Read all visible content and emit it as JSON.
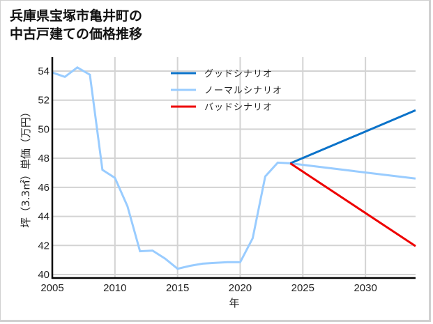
{
  "title": {
    "line1": "兵庫県宝塚市亀井町の",
    "line2": "中古戸建ての価格推移"
  },
  "colors": {
    "good": "#0a72c9",
    "normal": "#99ccff",
    "bad": "#ee0000",
    "grid": "#d3d3d3",
    "axis": "#000000"
  },
  "chart_data": {
    "type": "line",
    "title": "兵庫県宝塚市亀井町の中古戸建ての価格推移",
    "xlabel": "年",
    "ylabel": "坪（3.3㎡）単価（万円）",
    "xlim": [
      2005,
      2034
    ],
    "ylim": [
      39.8,
      54.9
    ],
    "xticks": [
      2005,
      2010,
      2015,
      2020,
      2025,
      2030
    ],
    "yticks": [
      40,
      42,
      44,
      46,
      48,
      50,
      52,
      54
    ],
    "grid": true,
    "legend_position": "upper center",
    "legend": [
      "グッドシナリオ",
      "ノーマルシナリオ",
      "バッドシナリオ"
    ],
    "series": [
      {
        "name": "ノーマルシナリオ",
        "key": "normal",
        "x": [
          2005,
          2006,
          2007,
          2008,
          2009,
          2010,
          2011,
          2012,
          2013,
          2014,
          2015,
          2016,
          2017,
          2018,
          2019,
          2020,
          2021,
          2022,
          2023,
          2024,
          2034
        ],
        "values": [
          53.9,
          53.6,
          54.25,
          53.75,
          47.2,
          46.65,
          44.7,
          41.6,
          41.65,
          41.1,
          40.4,
          40.6,
          40.75,
          40.8,
          40.85,
          40.85,
          42.5,
          46.75,
          47.7,
          47.65,
          46.6
        ]
      },
      {
        "name": "グッドシナリオ",
        "key": "good",
        "x": [
          2024,
          2034
        ],
        "values": [
          47.65,
          51.3
        ]
      },
      {
        "name": "バッドシナリオ",
        "key": "bad",
        "x": [
          2024,
          2034
        ],
        "values": [
          47.65,
          41.95
        ]
      }
    ]
  }
}
